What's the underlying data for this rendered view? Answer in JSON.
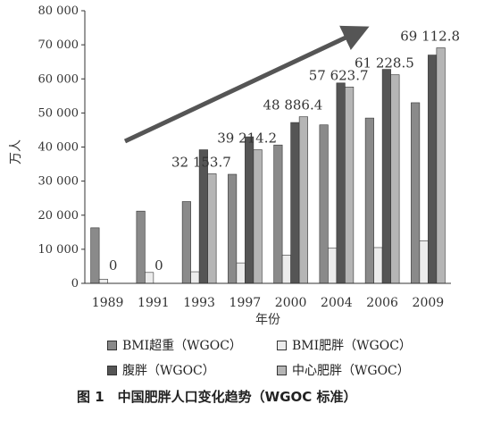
{
  "chart_data": {
    "type": "bar",
    "ylabel": "万人",
    "xlabel": "年份",
    "ylim": [
      0,
      80000
    ],
    "y_ticks": [
      "0",
      "10 000",
      "20 000",
      "30 000",
      "40 000",
      "50 000",
      "60 000",
      "70 000",
      "80 000"
    ],
    "categories": [
      "1989",
      "1991",
      "1993",
      "1997",
      "2000",
      "2004",
      "2006",
      "2009"
    ],
    "series": [
      {
        "name": "BMI超重（WGOC）",
        "color": "#8a8a8a",
        "values": [
          16300,
          21200,
          24000,
          32000,
          40600,
          46500,
          48500,
          53000
        ]
      },
      {
        "name": "BMI肥胖（WGOC）",
        "color": "#ececec",
        "values": [
          1200,
          3200,
          3400,
          6000,
          8300,
          10300,
          10500,
          12500
        ]
      },
      {
        "name": "腹胖（WGOC）",
        "color": "#555555",
        "values": [
          0,
          0,
          39200,
          43000,
          47200,
          58800,
          62800,
          67000
        ]
      },
      {
        "name": "中心肥胖（WGOC）",
        "color": "#b5b5b5",
        "values": [
          0,
          0,
          32153.7,
          39214.2,
          48886.4,
          57623.7,
          61228.5,
          69112.8
        ]
      }
    ],
    "data_labels": [
      "0",
      "0",
      "32 153.7",
      "39 214.2",
      "48 886.4",
      "57 623.7",
      "61 228.5",
      "69 112.8"
    ],
    "annotation": "trend arrow rising from 1991 to 2009",
    "legend_position": "bottom",
    "grid": false
  },
  "caption": "图 1　中国肥胖人口变化趋势（WGOC 标准）"
}
